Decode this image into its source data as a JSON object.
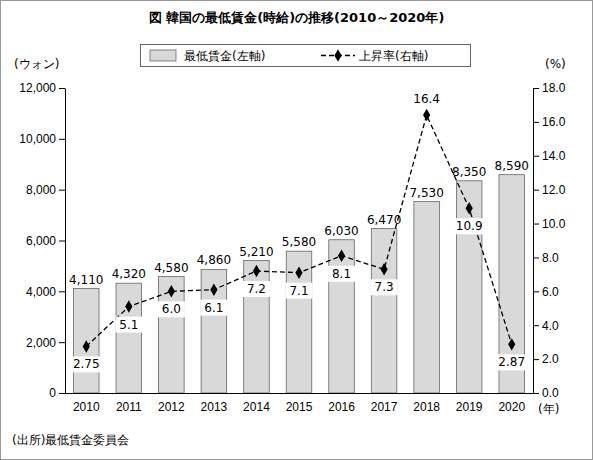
{
  "chart_data": {
    "type": "bar",
    "title": "図 韓国の最低賃金(時給)の推移(2010～2020年)",
    "categories": [
      "2010",
      "2011",
      "2012",
      "2013",
      "2014",
      "2015",
      "2016",
      "2017",
      "2018",
      "2019",
      "2020"
    ],
    "series": [
      {
        "name": "最低賃金(左軸)",
        "type": "bar",
        "color": "#d9d9d9",
        "values": [
          4110,
          4320,
          4580,
          4860,
          5210,
          5580,
          6030,
          6470,
          7530,
          8350,
          8590
        ],
        "value_labels": [
          "4,110",
          "4,320",
          "4,580",
          "4,860",
          "5,210",
          "5,580",
          "6,030",
          "6,470",
          "7,530",
          "8,350",
          "8,590"
        ]
      },
      {
        "name": "上昇率(右軸)",
        "type": "line",
        "axis": "y2",
        "color": "#000000",
        "marker": "diamond",
        "line_style": "dashed",
        "values": [
          2.75,
          5.1,
          6.0,
          6.1,
          7.2,
          7.1,
          8.1,
          7.3,
          16.4,
          10.9,
          2.87
        ],
        "value_labels": [
          "2.75",
          "5.1",
          "6.0",
          "6.1",
          "7.2",
          "7.1",
          "8.1",
          "7.3",
          "16.4",
          "10.9",
          "2.87"
        ]
      }
    ],
    "x_label": "(年)",
    "y_label": "(ウォン)",
    "y2_label": "(%)",
    "source": "(出所)最低賃金委員会",
    "ylim": [
      0,
      12000
    ],
    "yticks": [
      0,
      {
        "value": 2000,
        "label": "2,000"
      },
      {
        "value": 4000,
        "label": "4,000"
      },
      {
        "value": 6000,
        "label": "6,000"
      },
      {
        "value": 8000,
        "label": "8,000"
      },
      {
        "value": 10000,
        "label": "10,000"
      },
      {
        "value": 12000,
        "label": "12,000"
      }
    ],
    "y2lim": [
      0,
      18
    ],
    "y2ticks": [
      {
        "value": 0,
        "label": "0.0"
      },
      {
        "value": 2,
        "label": "2.0"
      },
      {
        "value": 4,
        "label": "4.0"
      },
      {
        "value": 6,
        "label": "6.0"
      },
      {
        "value": 8,
        "label": "8.0"
      },
      {
        "value": 10,
        "label": "10.0"
      },
      {
        "value": 12,
        "label": "12.0"
      },
      {
        "value": 14,
        "label": "14.0"
      },
      {
        "value": 16,
        "label": "16.0"
      },
      {
        "value": 18,
        "label": "18.0"
      }
    ],
    "grid": false,
    "legend": "top",
    "data_labels": true
  }
}
